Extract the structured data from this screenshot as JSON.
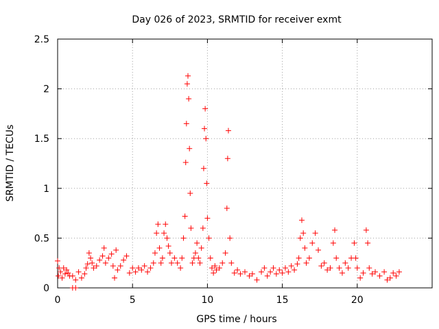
{
  "chart_data": {
    "type": "scatter",
    "title": "Day 026 of 2023, SRMTID for receiver exmt",
    "xlabel": "GPS time / hours",
    "ylabel": "SRMTID / TECUs",
    "xlim": [
      0,
      25
    ],
    "ylim": [
      0,
      2.5
    ],
    "xticks": [
      0,
      5,
      10,
      15,
      20
    ],
    "xtick_labels": [
      "0",
      "5",
      "10",
      "15",
      "20"
    ],
    "yticks": [
      0,
      0.5,
      1,
      1.5,
      2,
      2.5
    ],
    "ytick_labels": [
      "0",
      "0.5",
      "1",
      "1.5",
      "2",
      "2.5"
    ],
    "grid": true,
    "marker": "plus",
    "series": [
      {
        "name": "SRMTID",
        "color": "#ff0000",
        "points": [
          [
            0.0,
            0.27
          ],
          [
            0.05,
            0.12
          ],
          [
            0.1,
            0.2
          ],
          [
            0.2,
            0.16
          ],
          [
            0.3,
            0.1
          ],
          [
            0.4,
            0.2
          ],
          [
            0.5,
            0.14
          ],
          [
            0.6,
            0.18
          ],
          [
            0.7,
            0.15
          ],
          [
            0.8,
            0.12
          ],
          [
            1.0,
            0.0
          ],
          [
            1.2,
            0.0
          ],
          [
            1.0,
            0.12
          ],
          [
            1.2,
            0.08
          ],
          [
            1.4,
            0.16
          ],
          [
            1.6,
            0.1
          ],
          [
            1.8,
            0.14
          ],
          [
            1.9,
            0.2
          ],
          [
            2.0,
            0.24
          ],
          [
            2.1,
            0.35
          ],
          [
            2.2,
            0.3
          ],
          [
            2.3,
            0.25
          ],
          [
            2.4,
            0.2
          ],
          [
            2.6,
            0.22
          ],
          [
            2.8,
            0.28
          ],
          [
            3.0,
            0.32
          ],
          [
            3.1,
            0.4
          ],
          [
            3.2,
            0.25
          ],
          [
            3.4,
            0.3
          ],
          [
            3.6,
            0.34
          ],
          [
            3.7,
            0.22
          ],
          [
            3.8,
            0.1
          ],
          [
            3.9,
            0.38
          ],
          [
            4.0,
            0.18
          ],
          [
            4.2,
            0.22
          ],
          [
            4.4,
            0.28
          ],
          [
            4.6,
            0.32
          ],
          [
            4.8,
            0.15
          ],
          [
            5.0,
            0.2
          ],
          [
            5.2,
            0.16
          ],
          [
            5.4,
            0.2
          ],
          [
            5.6,
            0.18
          ],
          [
            5.8,
            0.22
          ],
          [
            6.0,
            0.16
          ],
          [
            6.2,
            0.2
          ],
          [
            6.4,
            0.25
          ],
          [
            6.5,
            0.35
          ],
          [
            6.6,
            0.55
          ],
          [
            6.7,
            0.64
          ],
          [
            6.8,
            0.4
          ],
          [
            6.9,
            0.25
          ],
          [
            7.0,
            0.3
          ],
          [
            7.1,
            0.55
          ],
          [
            7.2,
            0.64
          ],
          [
            7.3,
            0.5
          ],
          [
            7.4,
            0.42
          ],
          [
            7.5,
            0.35
          ],
          [
            7.6,
            0.25
          ],
          [
            7.8,
            0.3
          ],
          [
            8.0,
            0.25
          ],
          [
            8.2,
            0.2
          ],
          [
            8.3,
            0.3
          ],
          [
            8.4,
            0.5
          ],
          [
            8.5,
            0.72
          ],
          [
            8.55,
            1.26
          ],
          [
            8.6,
            1.65
          ],
          [
            8.65,
            2.05
          ],
          [
            8.7,
            2.13
          ],
          [
            8.75,
            1.9
          ],
          [
            8.8,
            1.4
          ],
          [
            8.85,
            0.95
          ],
          [
            8.9,
            0.6
          ],
          [
            9.0,
            0.25
          ],
          [
            9.1,
            0.3
          ],
          [
            9.2,
            0.35
          ],
          [
            9.3,
            0.45
          ],
          [
            9.4,
            0.3
          ],
          [
            9.5,
            0.25
          ],
          [
            9.6,
            0.4
          ],
          [
            9.7,
            0.6
          ],
          [
            9.75,
            1.2
          ],
          [
            9.8,
            1.6
          ],
          [
            9.85,
            1.8
          ],
          [
            9.9,
            1.5
          ],
          [
            9.95,
            1.05
          ],
          [
            10.0,
            0.7
          ],
          [
            10.1,
            0.5
          ],
          [
            10.2,
            0.3
          ],
          [
            10.3,
            0.2
          ],
          [
            10.4,
            0.15
          ],
          [
            10.5,
            0.22
          ],
          [
            10.6,
            0.18
          ],
          [
            10.8,
            0.2
          ],
          [
            11.0,
            0.25
          ],
          [
            11.2,
            0.35
          ],
          [
            11.3,
            0.8
          ],
          [
            11.35,
            1.3
          ],
          [
            11.4,
            1.58
          ],
          [
            11.5,
            0.5
          ],
          [
            11.6,
            0.25
          ],
          [
            11.8,
            0.15
          ],
          [
            12.0,
            0.18
          ],
          [
            12.2,
            0.14
          ],
          [
            12.5,
            0.16
          ],
          [
            12.8,
            0.12
          ],
          [
            13.0,
            0.14
          ],
          [
            13.3,
            0.08
          ],
          [
            13.6,
            0.16
          ],
          [
            13.8,
            0.2
          ],
          [
            14.0,
            0.12
          ],
          [
            14.2,
            0.16
          ],
          [
            14.4,
            0.2
          ],
          [
            14.6,
            0.14
          ],
          [
            14.8,
            0.18
          ],
          [
            15.0,
            0.15
          ],
          [
            15.2,
            0.2
          ],
          [
            15.4,
            0.16
          ],
          [
            15.6,
            0.22
          ],
          [
            15.8,
            0.18
          ],
          [
            16.0,
            0.24
          ],
          [
            16.1,
            0.3
          ],
          [
            16.2,
            0.5
          ],
          [
            16.3,
            0.68
          ],
          [
            16.4,
            0.55
          ],
          [
            16.5,
            0.4
          ],
          [
            16.6,
            0.25
          ],
          [
            16.8,
            0.3
          ],
          [
            17.0,
            0.45
          ],
          [
            17.2,
            0.55
          ],
          [
            17.4,
            0.38
          ],
          [
            17.6,
            0.22
          ],
          [
            17.8,
            0.25
          ],
          [
            18.0,
            0.18
          ],
          [
            18.2,
            0.2
          ],
          [
            18.4,
            0.45
          ],
          [
            18.5,
            0.58
          ],
          [
            18.6,
            0.3
          ],
          [
            18.8,
            0.2
          ],
          [
            19.0,
            0.15
          ],
          [
            19.2,
            0.25
          ],
          [
            19.4,
            0.2
          ],
          [
            19.6,
            0.3
          ],
          [
            19.8,
            0.45
          ],
          [
            19.9,
            0.3
          ],
          [
            20.0,
            0.2
          ],
          [
            20.2,
            0.1
          ],
          [
            20.4,
            0.15
          ],
          [
            20.6,
            0.58
          ],
          [
            20.7,
            0.45
          ],
          [
            20.8,
            0.2
          ],
          [
            21.0,
            0.14
          ],
          [
            21.2,
            0.16
          ],
          [
            21.5,
            0.12
          ],
          [
            21.8,
            0.16
          ],
          [
            22.0,
            0.08
          ],
          [
            22.2,
            0.1
          ],
          [
            22.4,
            0.15
          ],
          [
            22.6,
            0.12
          ],
          [
            22.8,
            0.16
          ]
        ]
      }
    ]
  }
}
